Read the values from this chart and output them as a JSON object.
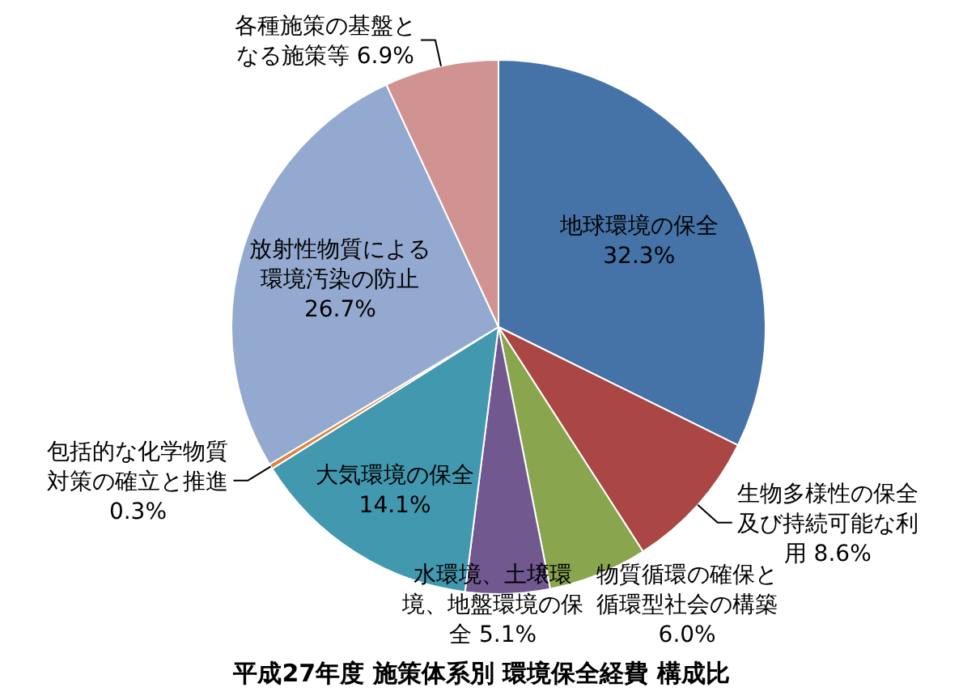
{
  "chart_data": {
    "type": "pie",
    "title": "平成27年度 施策体系別 環境保全経費 構成比",
    "categories": [
      "地球環境の保全",
      "生物多様性の保全及び持続可能な利用",
      "物質循環の確保と循環型社会の構築",
      "水環境、土壌環境、地盤環境の保全",
      "大気環境の保全",
      "包括的な化学物質対策の確立と推進",
      "放射性物質による環境汚染の防止",
      "各種施策の基盤となる施策等"
    ],
    "values": [
      32.3,
      8.6,
      6.0,
      5.1,
      14.1,
      0.3,
      26.7,
      6.9
    ],
    "value_labels": [
      "32.3%",
      "8.6%",
      "6.0%",
      "5.1%",
      "14.1%",
      "0.3%",
      "26.7%",
      "6.9%"
    ],
    "colors": [
      "#4572a7",
      "#aa4643",
      "#89a54e",
      "#71588f",
      "#4198af",
      "#db843d",
      "#93a9cf",
      "#d19392"
    ]
  }
}
